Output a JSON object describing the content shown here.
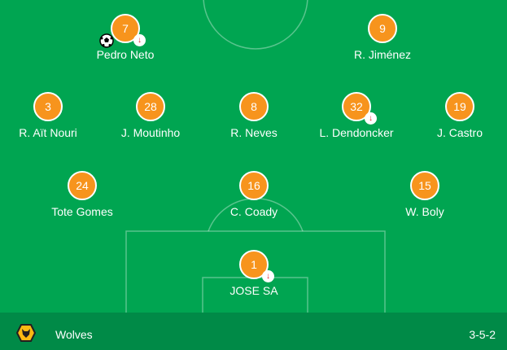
{
  "team": {
    "name": "Wolves",
    "formation": "3-5-2",
    "icon": "wolves-crest-icon"
  },
  "colors": {
    "pitch": "#00a551",
    "footer": "#008a47",
    "shirt": "#f7941d",
    "sub_arrow": "#e0202a"
  },
  "players": [
    {
      "number": "7",
      "name": "Pedro Neto",
      "subbed": true,
      "goal": true
    },
    {
      "number": "9",
      "name": "R. Jiménez",
      "subbed": false,
      "goal": false
    },
    {
      "number": "3",
      "name": "R. Aït Nouri",
      "subbed": false,
      "goal": false
    },
    {
      "number": "28",
      "name": "J. Moutinho",
      "subbed": false,
      "goal": false
    },
    {
      "number": "8",
      "name": "R. Neves",
      "subbed": false,
      "goal": false
    },
    {
      "number": "32",
      "name": "L. Dendoncker",
      "subbed": true,
      "goal": false
    },
    {
      "number": "19",
      "name": "J. Castro",
      "subbed": false,
      "goal": false
    },
    {
      "number": "24",
      "name": "Tote Gomes",
      "subbed": false,
      "goal": false
    },
    {
      "number": "16",
      "name": "C. Coady",
      "subbed": false,
      "goal": false
    },
    {
      "number": "15",
      "name": "W. Boly",
      "subbed": false,
      "goal": false
    },
    {
      "number": "1",
      "name": "JOSE SA",
      "subbed": true,
      "goal": false
    }
  ]
}
